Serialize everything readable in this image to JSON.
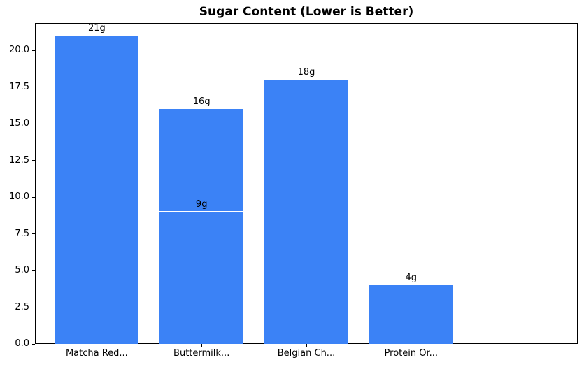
{
  "chart_data": {
    "type": "bar",
    "title": "Sugar Content (Lower is Better)",
    "categories": [
      "Matcha Red...",
      "Buttermilk...",
      "Belgian Ch...",
      "Protein Or..."
    ],
    "values": [
      21,
      16,
      18,
      4
    ],
    "bar_labels": [
      "21g",
      "16g",
      "18g",
      "4g"
    ],
    "secondary_bars": [
      {
        "category_index": 1,
        "value": 9,
        "bar_label": "9g"
      }
    ],
    "unit": "g",
    "xlabel": "",
    "ylabel": "",
    "ylim": [
      0,
      21.86
    ],
    "yticks": [
      0,
      2.5,
      5,
      7.5,
      10,
      12.5,
      15,
      17.5,
      20
    ],
    "ytick_labels": [
      "0.0",
      "2.5",
      "5.0",
      "7.5",
      "10.0",
      "12.5",
      "15.0",
      "17.5",
      "20.0"
    ],
    "grid": false,
    "legend": null,
    "colors": {
      "bar": "#3b82f6",
      "bar_divider": "#ffffff",
      "axis": "#000000",
      "text": "#000000",
      "background": "#ffffff"
    }
  }
}
